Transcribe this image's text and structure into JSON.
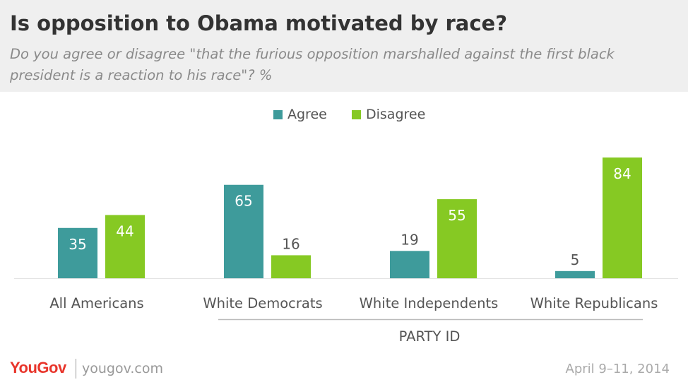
{
  "header": {
    "title": "Is opposition to Obama motivated by race?",
    "subtitle": "Do you agree or disagree \"that the furious opposition marshalled against the first black president is a reaction to his race\"? %"
  },
  "chart_data": {
    "type": "bar",
    "categories": [
      "All Americans",
      "White Democrats",
      "White Independents",
      "White Republicans"
    ],
    "series": [
      {
        "name": "Agree",
        "color": "#3e9b9b",
        "values": [
          35,
          65,
          19,
          5
        ]
      },
      {
        "name": "Disagree",
        "color": "#86c923",
        "values": [
          44,
          16,
          55,
          84
        ]
      }
    ],
    "group_label": "PARTY ID",
    "ylim": [
      0,
      100
    ],
    "grid": false,
    "legend_position": "top-center"
  },
  "footer": {
    "logo": "YouGov",
    "site": "yougov.com",
    "date": "April 9–11, 2014"
  }
}
